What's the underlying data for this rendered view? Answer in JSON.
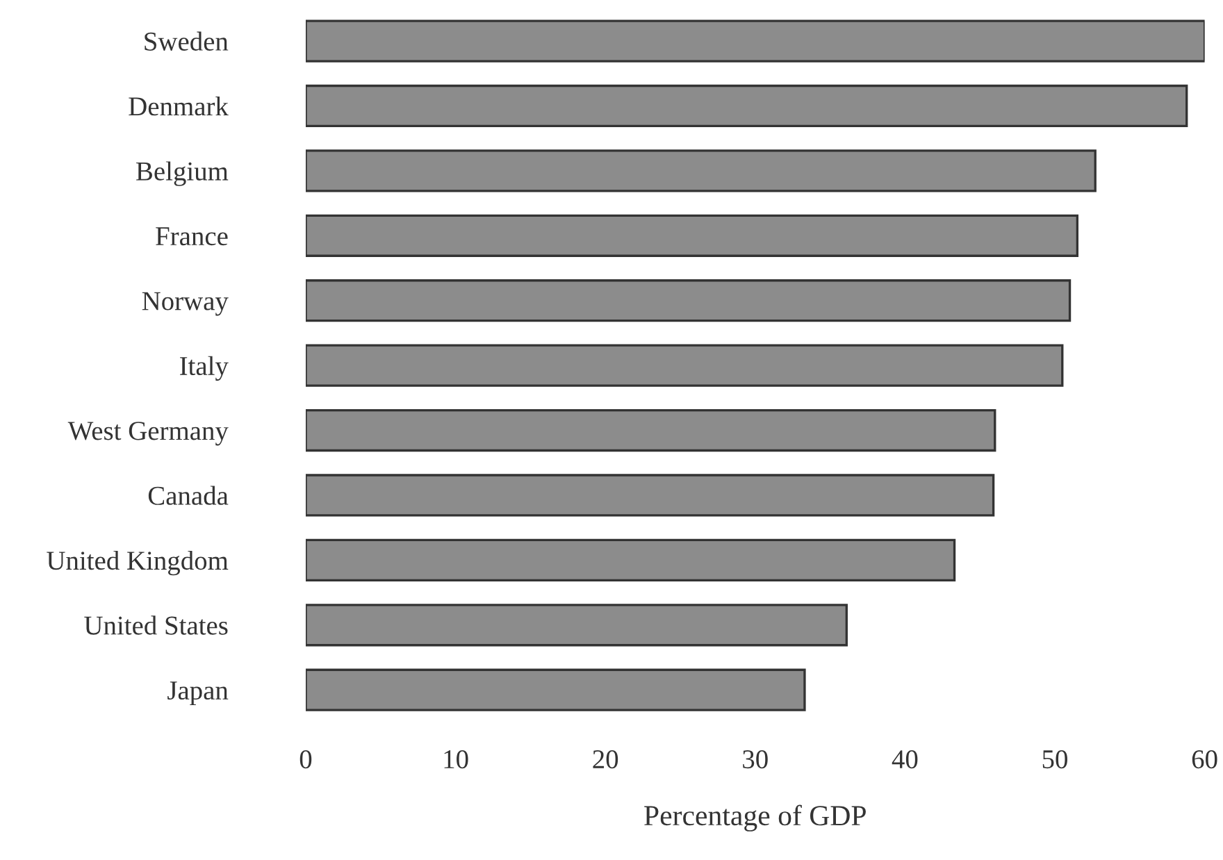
{
  "chart_data": {
    "type": "bar",
    "orientation": "horizontal",
    "xlabel": "Percentage of GDP",
    "categories": [
      "Sweden",
      "Denmark",
      "Belgium",
      "France",
      "Norway",
      "Italy",
      "West Germany",
      "Canada",
      "United Kingdom",
      "United States",
      "Japan"
    ],
    "values": [
      60.0,
      58.8,
      52.7,
      51.5,
      51.0,
      50.5,
      46.0,
      45.9,
      43.3,
      36.1,
      33.3
    ],
    "color": "#8c8c8c",
    "xlim": [
      0,
      60
    ],
    "xticks": [
      0,
      10,
      20,
      30,
      40,
      50,
      60
    ],
    "grid": false
  }
}
